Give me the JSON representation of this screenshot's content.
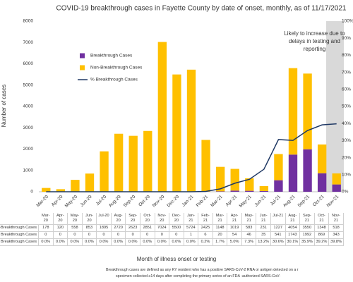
{
  "chart_data": {
    "type": "bar",
    "stacked": true,
    "title": "COVID-19 breakthrough cases in Fayette County by date of onset, monthly, as of 11/17/2021",
    "y_label": "Number of cases",
    "x_label": "Month of illness onset or testing",
    "categories": [
      "Mar-20",
      "Apr-20",
      "May-20",
      "Jun-20",
      "Jul-20",
      "Aug-20",
      "Sep-20",
      "Oct-20",
      "Nov-20",
      "Dec-20",
      "Jan-21",
      "Feb-21",
      "Mar-21",
      "Apr-21",
      "May-21",
      "Jun-21",
      "Jul-21",
      "Aug-21",
      "Sep-21",
      "Oct-21",
      "Nov-21"
    ],
    "series": [
      {
        "name": "Breakthrough Cases",
        "color": "#7030a0",
        "values": [
          0,
          0,
          0,
          0,
          0,
          0,
          0,
          0,
          0,
          0,
          1,
          6,
          20,
          54,
          46,
          35,
          541,
          1743,
          1992,
          869,
          343
        ]
      },
      {
        "name": "Non-Breakthrough Cases",
        "color": "#ffc000",
        "values": [
          178,
          120,
          558,
          853,
          1895,
          2720,
          2623,
          2851,
          7024,
          5500,
          5724,
          2425,
          1148,
          1019,
          583,
          231,
          1227,
          4054,
          3550,
          1348,
          518
        ]
      },
      {
        "name": "% Breakthrough Cases",
        "color": "#1f3864",
        "type": "line",
        "axis": "y2",
        "values": [
          0.0,
          0.0,
          0.0,
          0.0,
          0.0,
          0.0,
          0.0,
          0.0,
          0.0,
          0.0,
          0.0,
          0.2,
          1.7,
          5.0,
          7.3,
          13.2,
          30.6,
          30.1,
          35.9,
          39.2,
          39.8
        ],
        "value_labels": [
          "0.0%",
          "0.0%",
          "0.0%",
          "0.0%",
          "0.0%",
          "0.0%",
          "0.0%",
          "0.0%",
          "0.0%",
          "0.0%",
          "0.0%",
          "0.2%",
          "1.7%",
          "5.0%",
          "7.3%",
          "13.2%",
          "30.6%",
          "30.1%",
          "35.9%",
          "39.2%",
          "39.8%"
        ]
      }
    ],
    "ylim": [
      0,
      8000
    ],
    "yticks": [
      0,
      1000,
      2000,
      3000,
      4000,
      5000,
      6000,
      7000,
      8000
    ],
    "y2lim": [
      0,
      100
    ],
    "y2ticks": [
      {
        "value": 0,
        "label": "0%"
      },
      {
        "value": 10,
        "label": "10%"
      },
      {
        "value": 20,
        "label": "20%"
      },
      {
        "value": 30,
        "label": "30%"
      },
      {
        "value": 40,
        "label": "40%"
      },
      {
        "value": 50,
        "label": "50%"
      },
      {
        "value": 60,
        "label": "60%"
      },
      {
        "value": 70,
        "label": "70%"
      },
      {
        "value": 80,
        "label": "80%"
      },
      {
        "value": 90,
        "label": "90%"
      },
      {
        "value": 100,
        "label": "100%"
      }
    ],
    "annotation": "Likely to increase due to delays in testing and reporting",
    "footnote": [
      "Breakthrough cases are defined as any KY resident who has a positive SARS-CoV-2 RNA or antigen detected on a r",
      "specimen collected ≥14 days after completing the primary series of an FDA -authorized SARS-CoV-"
    ]
  }
}
